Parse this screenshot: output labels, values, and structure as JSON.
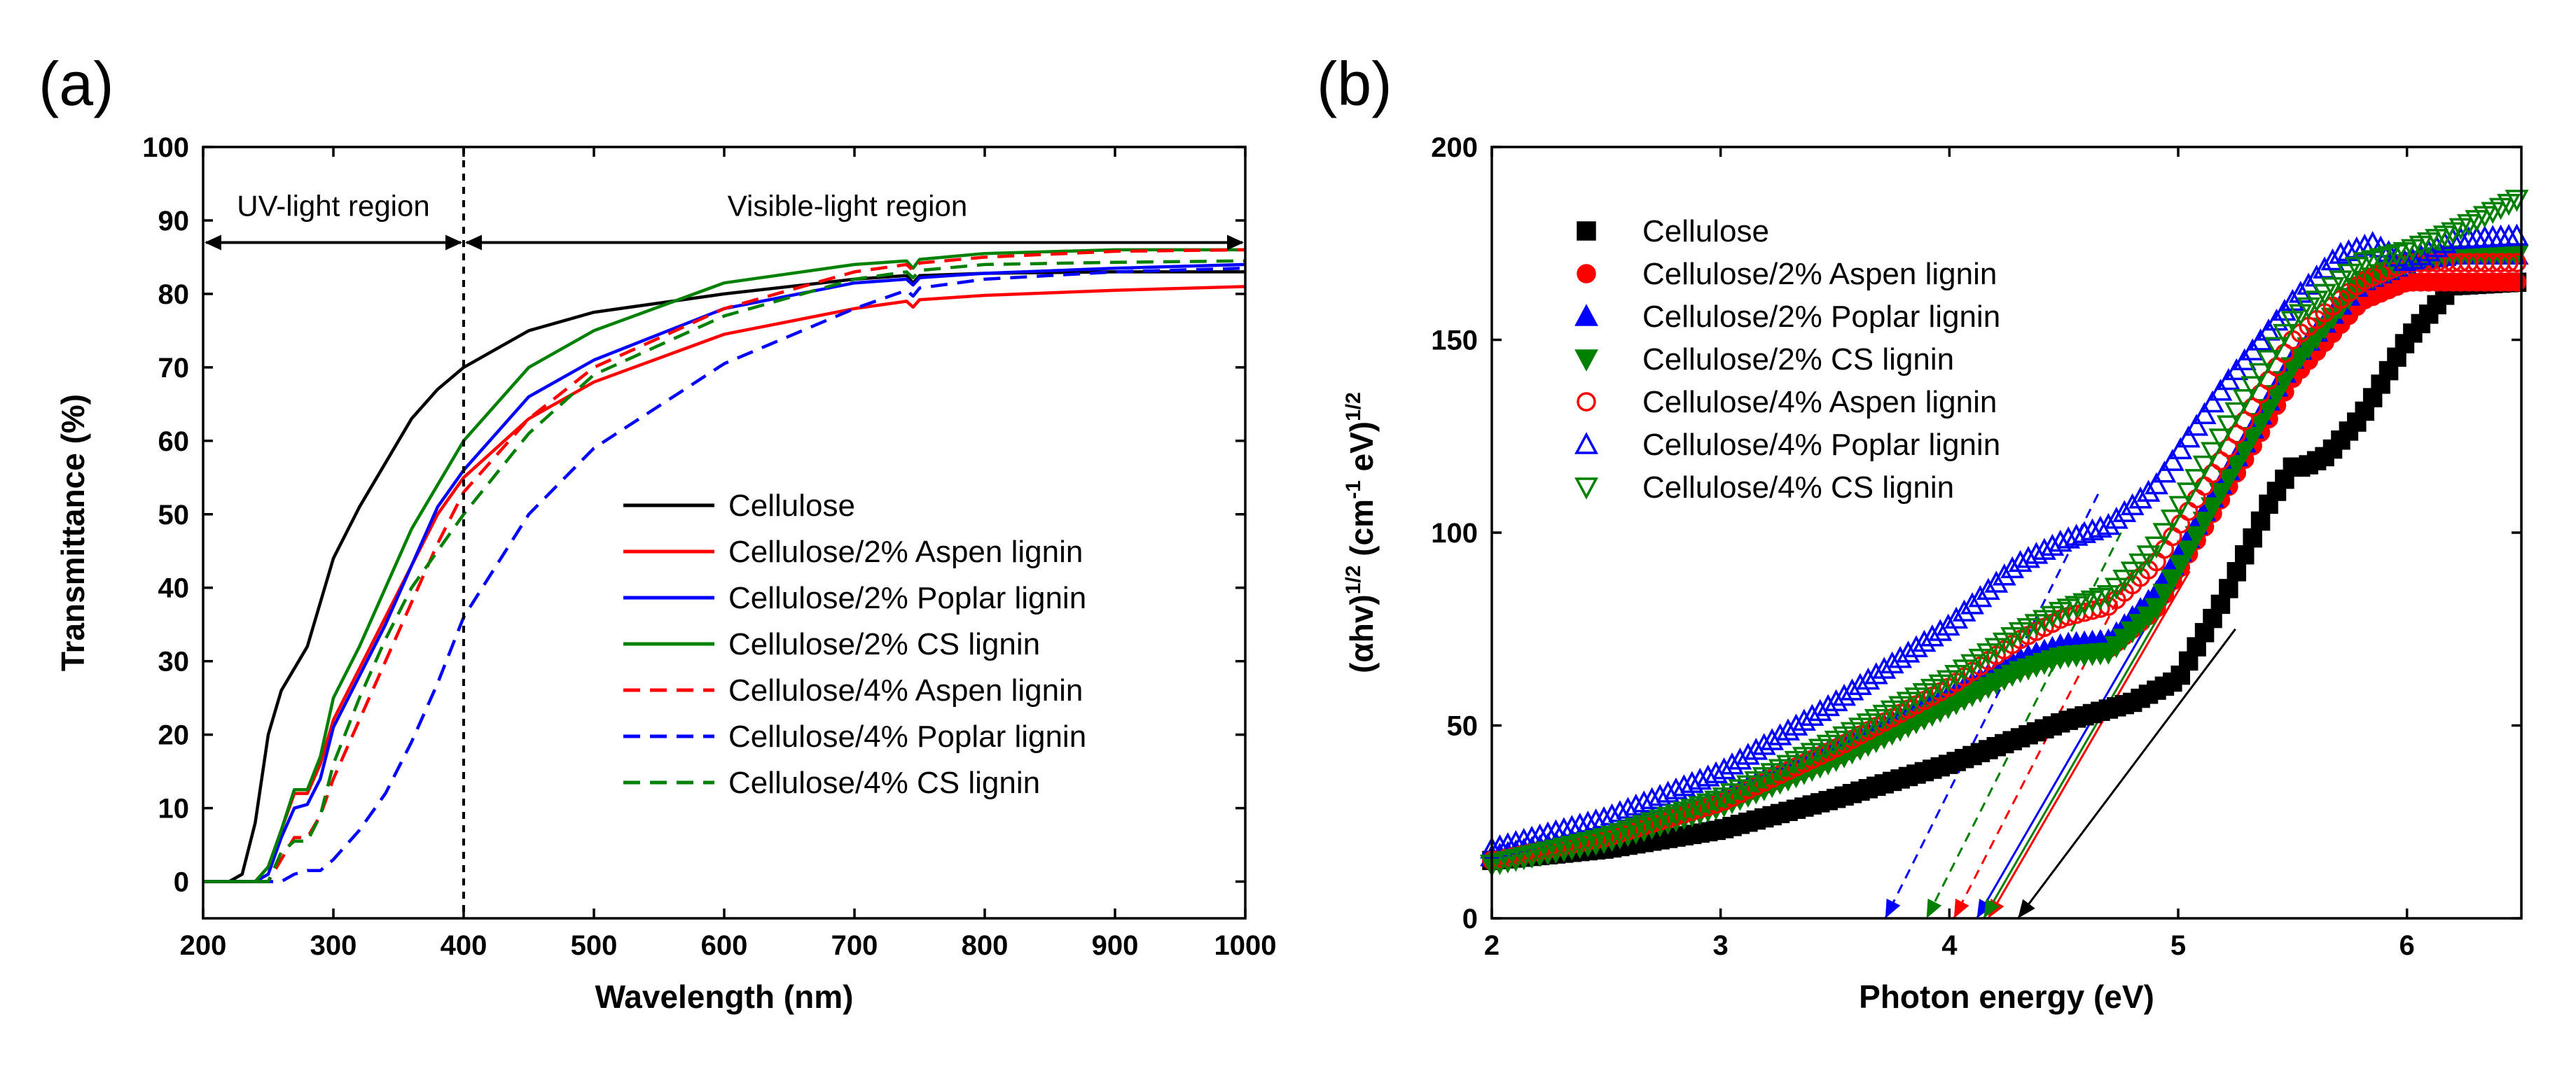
{
  "figure": {
    "panel_a_label": "(a)",
    "panel_b_label": "(b)"
  },
  "chart_data": [
    {
      "type": "line",
      "panel": "(a)",
      "xlabel": "Wavelength (nm)",
      "ylabel": "Transmittance (%)",
      "xlim": [
        200,
        1000
      ],
      "ylim": [
        -5,
        100
      ],
      "xticks": [
        200,
        300,
        400,
        500,
        600,
        700,
        800,
        900,
        1000
      ],
      "yticks": [
        0,
        10,
        20,
        30,
        40,
        50,
        60,
        70,
        80,
        90,
        100
      ],
      "annotations": {
        "uv_region": "UV-light region",
        "visible_region": "Visible-light region",
        "boundary_x": 400,
        "arrow_y": 87
      },
      "legend_position": "center-right",
      "series": [
        {
          "name": "Cellulose",
          "color": "#000000",
          "dash": "solid",
          "x": [
            200,
            220,
            230,
            240,
            250,
            260,
            270,
            280,
            290,
            300,
            320,
            340,
            360,
            380,
            400,
            450,
            500,
            600,
            700,
            740,
            745,
            750,
            800,
            900,
            1000
          ],
          "y": [
            0,
            0,
            1,
            8,
            20,
            26,
            29,
            32,
            38,
            44,
            51,
            57,
            63,
            67,
            70,
            75,
            77.5,
            80,
            82,
            82.5,
            81.5,
            82.5,
            82.8,
            83,
            83
          ]
        },
        {
          "name": "Cellulose/2% Aspen lignin",
          "color": "#ff0000",
          "dash": "solid",
          "x": [
            200,
            240,
            250,
            260,
            270,
            280,
            290,
            300,
            320,
            340,
            360,
            380,
            400,
            450,
            500,
            600,
            700,
            740,
            745,
            750,
            800,
            900,
            1000
          ],
          "y": [
            0,
            0,
            2,
            7,
            12,
            12,
            16,
            22,
            29,
            36,
            43,
            50,
            55,
            63,
            68,
            74.5,
            78,
            79,
            78.2,
            79.2,
            79.8,
            80.5,
            81
          ]
        },
        {
          "name": "Cellulose/2% Poplar lignin",
          "color": "#0000ff",
          "dash": "solid",
          "x": [
            200,
            240,
            250,
            260,
            270,
            280,
            290,
            300,
            320,
            340,
            360,
            380,
            400,
            450,
            500,
            600,
            700,
            740,
            745,
            750,
            800,
            900,
            1000
          ],
          "y": [
            0,
            0,
            1,
            6,
            10,
            10.5,
            14,
            21,
            28,
            35,
            43,
            51,
            56,
            66,
            71,
            78,
            81.5,
            82,
            81.2,
            82.2,
            82.8,
            83.5,
            84
          ]
        },
        {
          "name": "Cellulose/2% CS lignin",
          "color": "#008000",
          "dash": "solid",
          "x": [
            200,
            240,
            250,
            260,
            270,
            280,
            290,
            300,
            320,
            340,
            360,
            380,
            400,
            450,
            500,
            600,
            700,
            740,
            745,
            750,
            800,
            900,
            1000
          ],
          "y": [
            0,
            0,
            2,
            7,
            12.5,
            12.5,
            17,
            25,
            32,
            40,
            48,
            54,
            60,
            70,
            75,
            81.5,
            84,
            84.5,
            83.5,
            84.7,
            85.5,
            86,
            86
          ]
        },
        {
          "name": "Cellulose/4% Aspen lignin",
          "color": "#ff0000",
          "dash": "dashed",
          "x": [
            200,
            250,
            260,
            270,
            280,
            290,
            300,
            320,
            340,
            360,
            380,
            400,
            450,
            500,
            600,
            700,
            740,
            745,
            750,
            800,
            900,
            1000
          ],
          "y": [
            0,
            0,
            3,
            6,
            6,
            9,
            14,
            22,
            30,
            38,
            46,
            53,
            63,
            70,
            78,
            83,
            84,
            83.2,
            84.2,
            85,
            85.8,
            86
          ]
        },
        {
          "name": "Cellulose/4% Poplar lignin",
          "color": "#0000ff",
          "dash": "dashed",
          "x": [
            200,
            260,
            270,
            280,
            290,
            300,
            320,
            340,
            360,
            380,
            400,
            450,
            500,
            600,
            700,
            740,
            745,
            750,
            800,
            900,
            1000
          ],
          "y": [
            0,
            0,
            1,
            1.5,
            1.5,
            3,
            7,
            12,
            19,
            27,
            36,
            50,
            59,
            70.5,
            78,
            80.5,
            79.7,
            80.8,
            82,
            83,
            83.5
          ]
        },
        {
          "name": "Cellulose/4% CS lignin",
          "color": "#008000",
          "dash": "dashed",
          "x": [
            200,
            250,
            260,
            270,
            280,
            290,
            300,
            320,
            340,
            360,
            380,
            400,
            450,
            500,
            600,
            700,
            740,
            745,
            750,
            800,
            900,
            1000
          ],
          "y": [
            0,
            0,
            4,
            5.5,
            5.5,
            9,
            16,
            25,
            33,
            40,
            45,
            50,
            61,
            69,
            77,
            82,
            83,
            82.2,
            83.2,
            84,
            84.3,
            84.5
          ]
        }
      ]
    },
    {
      "type": "scatter",
      "panel": "(b)",
      "xlabel": "Photon energy (eV)",
      "ylabel": "(αhv)1/2 (cm-1 eV)1/2",
      "ylabel_parts": {
        "base": "(αhv)",
        "exp1": "1/2",
        "mid": " (cm",
        "exp2": "-1",
        "mid2": " eV)",
        "exp3": "1/2"
      },
      "xlim": [
        2,
        6.5
      ],
      "ylim": [
        0,
        200
      ],
      "xticks": [
        2,
        3,
        4,
        5,
        6
      ],
      "yticks": [
        0,
        50,
        100,
        150,
        200
      ],
      "legend_position": "top-left",
      "series": [
        {
          "name": "Cellulose",
          "color": "#000000",
          "marker": "square-filled",
          "x": [
            2,
            2.5,
            3,
            3.5,
            4,
            4.5,
            4.8,
            5,
            5.2,
            5.4,
            5.5,
            5.55,
            5.65,
            5.8,
            6,
            6.2,
            6.5
          ],
          "y": [
            15,
            18,
            23,
            31,
            40,
            51,
            56,
            62,
            83,
            108,
            117,
            117,
            120,
            130,
            150,
            164,
            165
          ],
          "tangent": {
            "x1": 4.3,
            "y1": 0,
            "x2": 5.25,
            "y2": 75
          }
        },
        {
          "name": "Cellulose/2% Aspen lignin",
          "color": "#ff0000",
          "marker": "circle-filled",
          "x": [
            2,
            2.5,
            3,
            3.5,
            4,
            4.3,
            4.5,
            4.7,
            4.9,
            5.2,
            5.5,
            5.8,
            6,
            6.2,
            6.5
          ],
          "y": [
            15,
            21,
            30,
            42,
            56,
            65,
            69,
            70,
            80,
            110,
            140,
            160,
            165,
            165,
            165
          ],
          "tangent": {
            "x1": 4.17,
            "y1": 0,
            "x2": 5.05,
            "y2": 90
          }
        },
        {
          "name": "Cellulose/2% Poplar lignin",
          "color": "#0000ff",
          "marker": "triangle-up-filled",
          "x": [
            2,
            2.5,
            3,
            3.5,
            4,
            4.3,
            4.5,
            4.7,
            4.9,
            5.2,
            5.5,
            5.8,
            6,
            6.2,
            6.5
          ],
          "y": [
            16,
            22,
            31,
            44,
            58,
            67,
            71,
            72,
            84,
            114,
            145,
            165,
            170,
            172,
            172
          ],
          "tangent": {
            "x1": 4.12,
            "y1": 0,
            "x2": 5.0,
            "y2": 90
          }
        },
        {
          "name": "Cellulose/2% CS lignin",
          "color": "#008000",
          "marker": "triangle-down-filled",
          "x": [
            2,
            2.5,
            3,
            3.5,
            4,
            4.3,
            4.5,
            4.7,
            4.9,
            5.2,
            5.5,
            5.8,
            6,
            6.2,
            6.5
          ],
          "y": [
            14,
            20,
            29,
            41,
            55,
            64,
            68,
            69,
            80,
            112,
            143,
            165,
            170,
            172,
            172
          ],
          "tangent": {
            "x1": 4.15,
            "y1": 0,
            "x2": 5.03,
            "y2": 90
          }
        },
        {
          "name": "Cellulose/4% Aspen lignin",
          "color": "#ff0000",
          "marker": "circle-open",
          "x": [
            2,
            2.5,
            3,
            3.5,
            4,
            4.3,
            4.5,
            4.7,
            4.9,
            5.2,
            5.5,
            5.8,
            6,
            6.2,
            6.5
          ],
          "y": [
            15,
            21,
            30,
            44,
            60,
            72,
            78,
            81,
            92,
            120,
            150,
            165,
            170,
            170,
            170
          ],
          "tangent": {
            "x1": 4.02,
            "y1": 0,
            "x2": 4.8,
            "y2": 90
          }
        },
        {
          "name": "Cellulose/4% Poplar lignin",
          "color": "#0000ff",
          "marker": "triangle-up-open",
          "x": [
            2,
            2.5,
            3,
            3.5,
            4,
            4.3,
            4.5,
            4.7,
            4.9,
            5.2,
            5.5,
            5.7,
            5.85,
            6,
            6.2,
            6.5
          ],
          "y": [
            18,
            26,
            38,
            56,
            76,
            92,
            98,
            102,
            112,
            138,
            160,
            172,
            175,
            170,
            176,
            177
          ],
          "tangent": {
            "x1": 3.72,
            "y1": 0,
            "x2": 4.65,
            "y2": 110
          }
        },
        {
          "name": "Cellulose/4% CS lignin",
          "color": "#008000",
          "marker": "triangle-down-open",
          "x": [
            2,
            2.5,
            3,
            3.5,
            4,
            4.3,
            4.5,
            4.7,
            4.9,
            5.2,
            5.5,
            5.8,
            6,
            6.2,
            6.5
          ],
          "y": [
            14,
            21,
            31,
            46,
            62,
            74,
            80,
            84,
            96,
            126,
            155,
            170,
            173,
            178,
            187
          ],
          "tangent": {
            "x1": 3.9,
            "y1": 0,
            "x2": 4.75,
            "y2": 100
          }
        }
      ]
    }
  ]
}
